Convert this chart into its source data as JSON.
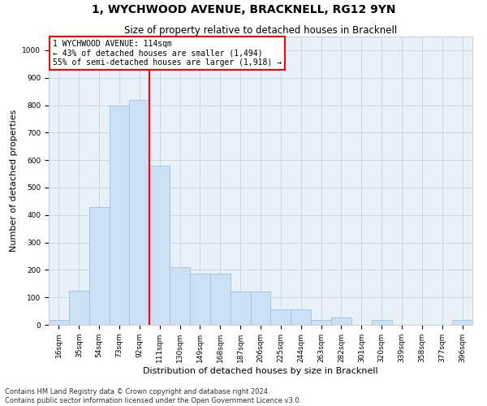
{
  "title": "1, WYCHWOOD AVENUE, BRACKNELL, RG12 9YN",
  "subtitle": "Size of property relative to detached houses in Bracknell",
  "xlabel": "Distribution of detached houses by size in Bracknell",
  "ylabel": "Number of detached properties",
  "bar_labels": [
    "16sqm",
    "35sqm",
    "54sqm",
    "73sqm",
    "92sqm",
    "111sqm",
    "130sqm",
    "149sqm",
    "168sqm",
    "187sqm",
    "206sqm",
    "225sqm",
    "244sqm",
    "263sqm",
    "282sqm",
    "301sqm",
    "320sqm",
    "339sqm",
    "358sqm",
    "377sqm",
    "396sqm"
  ],
  "bar_values": [
    18,
    125,
    430,
    800,
    820,
    580,
    210,
    185,
    185,
    120,
    120,
    55,
    55,
    18,
    28,
    0,
    18,
    0,
    0,
    0,
    18
  ],
  "bar_color": "#cce0f5",
  "bar_edge_color": "#a0c0e0",
  "vline_index": 5,
  "annotation_text": "1 WYCHWOOD AVENUE: 114sqm\n← 43% of detached houses are smaller (1,494)\n55% of semi-detached houses are larger (1,918) →",
  "annotation_box_color": "white",
  "annotation_box_edge_color": "red",
  "vline_color": "red",
  "ylim": [
    0,
    1050
  ],
  "yticks": [
    0,
    100,
    200,
    300,
    400,
    500,
    600,
    700,
    800,
    900,
    1000
  ],
  "grid_color": "#c8d8e8",
  "bg_color": "#e8f0f8",
  "footer1": "Contains HM Land Registry data © Crown copyright and database right 2024.",
  "footer2": "Contains public sector information licensed under the Open Government Licence v3.0.",
  "title_fontsize": 10,
  "subtitle_fontsize": 8.5,
  "tick_fontsize": 6.5,
  "ylabel_fontsize": 8,
  "xlabel_fontsize": 8,
  "annotation_fontsize": 7,
  "footer_fontsize": 6
}
